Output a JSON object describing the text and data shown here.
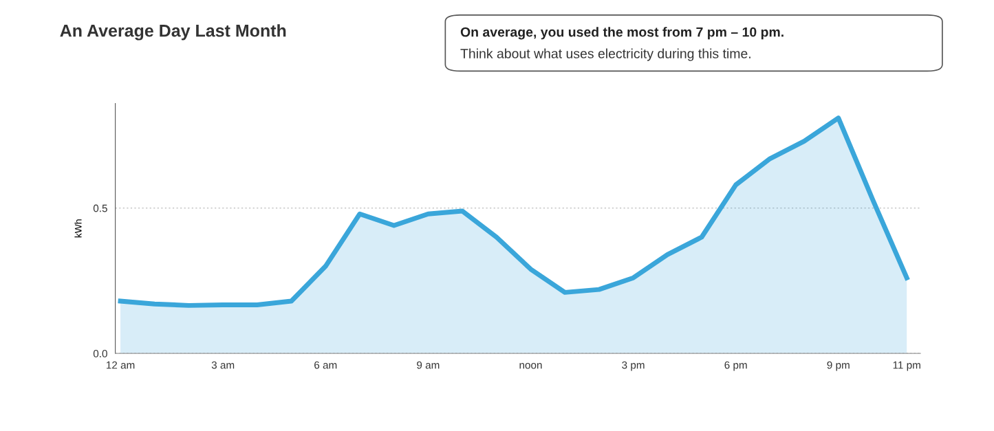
{
  "chart_data": {
    "type": "area",
    "title": "An Average Day Last Month",
    "annotations": [
      "On average, you used the most from 7 pm – 10 pm.",
      "Think about what uses electricity during this time."
    ],
    "ylabel": "kWh",
    "categories": [
      "12 am",
      null,
      null,
      "3 am",
      null,
      null,
      "6 am",
      null,
      null,
      "9 am",
      null,
      null,
      "noon",
      null,
      null,
      "3 pm",
      null,
      null,
      "6 pm",
      null,
      null,
      "9 pm",
      null,
      "11 pm"
    ],
    "series": [
      {
        "color": "#3aa6da",
        "values": [
          0.18,
          0.17,
          0.165,
          0.167,
          0.167,
          0.18,
          0.3,
          0.48,
          0.44,
          0.48,
          0.49,
          0.4,
          0.29,
          0.21,
          0.22,
          0.26,
          0.34,
          0.4,
          0.58,
          0.67,
          0.73,
          0.81,
          0.53,
          0.26
        ]
      }
    ],
    "ylim": [
      0,
      0.86
    ],
    "yticks": [
      {
        "value": 0,
        "label": "0.0"
      },
      0.5
    ],
    "grid": "y",
    "line_style": "solid",
    "marker": "none"
  }
}
